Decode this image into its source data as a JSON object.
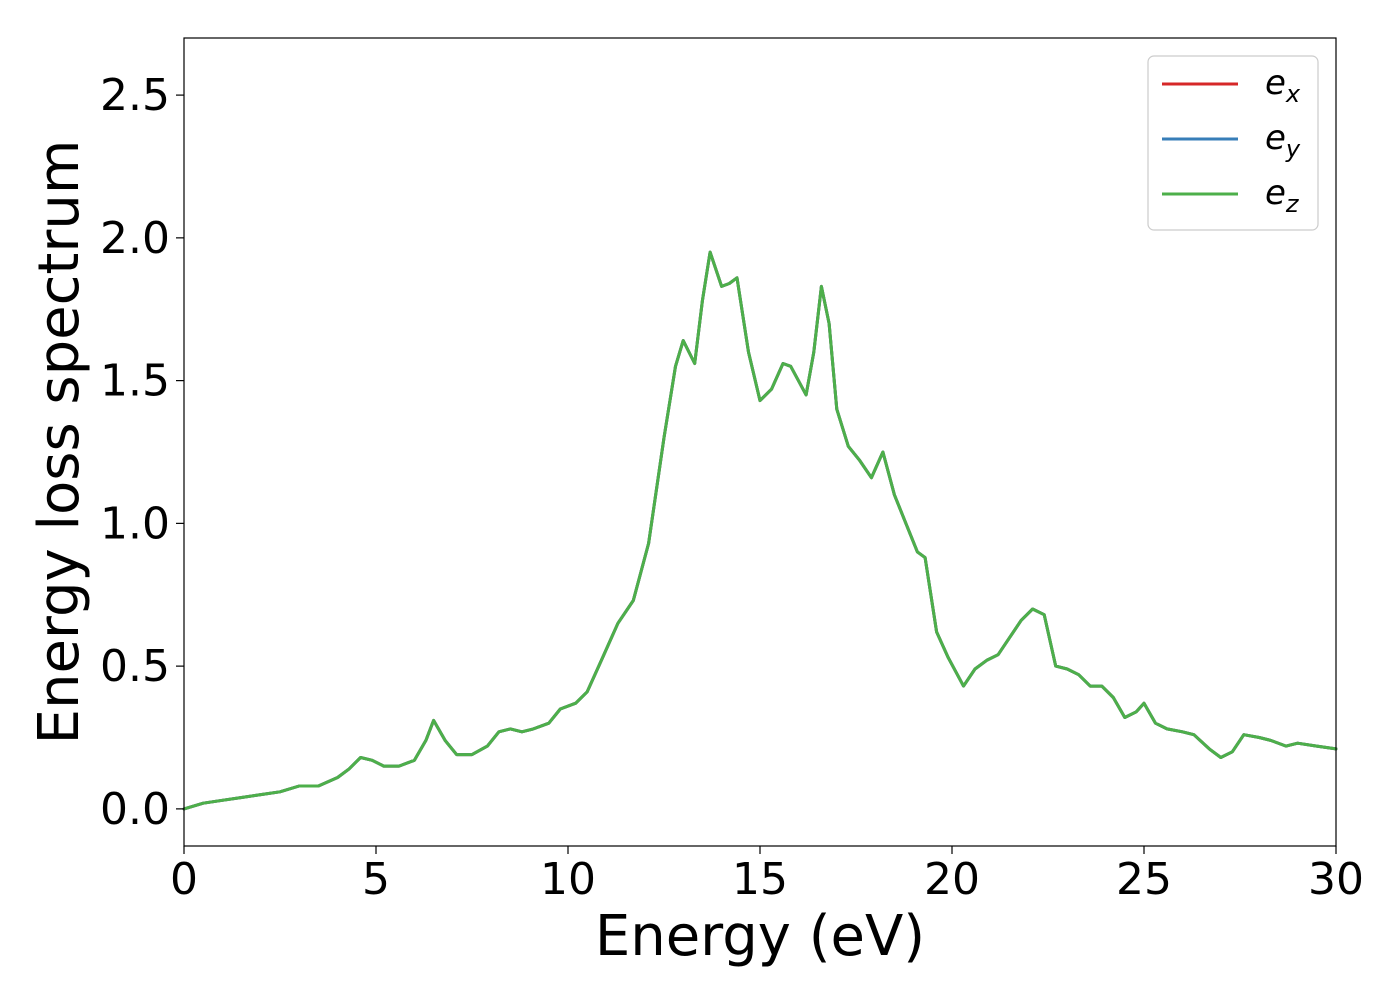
{
  "chart_data": {
    "type": "line",
    "title": "",
    "xlabel": "Energy (eV)",
    "ylabel": "Energy loss spectrum",
    "xlim": [
      0,
      30
    ],
    "ylim": [
      -0.13,
      2.7
    ],
    "xticks": [
      0,
      5,
      10,
      15,
      20,
      25,
      30
    ],
    "xtick_labels": [
      "0",
      "5",
      "10",
      "15",
      "20",
      "25",
      "30"
    ],
    "yticks": [
      0.0,
      0.5,
      1.0,
      1.5,
      2.0,
      2.5
    ],
    "ytick_labels": [
      "0.0",
      "0.5",
      "1.0",
      "1.5",
      "2.0",
      "2.5"
    ],
    "grid": false,
    "legend_position": "top-right",
    "x": [
      0,
      0.5,
      1,
      1.5,
      2,
      2.5,
      3,
      3.5,
      4,
      4.3,
      4.6,
      4.9,
      5.2,
      5.6,
      6.0,
      6.3,
      6.5,
      6.8,
      7.1,
      7.5,
      7.9,
      8.2,
      8.5,
      8.8,
      9.1,
      9.5,
      9.8,
      10.2,
      10.5,
      10.9,
      11.3,
      11.7,
      12.1,
      12.5,
      12.8,
      13.0,
      13.3,
      13.5,
      13.7,
      14.0,
      14.2,
      14.4,
      14.7,
      15.0,
      15.3,
      15.6,
      15.8,
      16.0,
      16.2,
      16.4,
      16.6,
      16.8,
      17.0,
      17.3,
      17.6,
      17.9,
      18.2,
      18.5,
      18.8,
      19.1,
      19.3,
      19.6,
      19.9,
      20.3,
      20.6,
      20.9,
      21.2,
      21.5,
      21.8,
      22.1,
      22.4,
      22.7,
      23.0,
      23.3,
      23.6,
      23.9,
      24.2,
      24.5,
      24.8,
      25.0,
      25.3,
      25.6,
      26.0,
      26.3,
      26.7,
      27.0,
      27.3,
      27.6,
      28.0,
      28.3,
      28.7,
      29.0,
      29.5,
      30.0
    ],
    "series": [
      {
        "name": "e_x",
        "color": "#d62728",
        "values": [
          0.0,
          0.02,
          0.03,
          0.04,
          0.05,
          0.06,
          0.08,
          0.08,
          0.11,
          0.14,
          0.18,
          0.17,
          0.15,
          0.15,
          0.17,
          0.24,
          0.31,
          0.24,
          0.19,
          0.19,
          0.22,
          0.27,
          0.28,
          0.27,
          0.28,
          0.3,
          0.35,
          0.37,
          0.41,
          0.53,
          0.65,
          0.73,
          0.93,
          1.3,
          1.55,
          1.64,
          1.56,
          1.78,
          1.95,
          1.83,
          1.84,
          1.86,
          1.6,
          1.43,
          1.47,
          1.56,
          1.55,
          1.5,
          1.45,
          1.6,
          1.83,
          1.7,
          1.4,
          1.27,
          1.22,
          1.16,
          1.25,
          1.1,
          1.0,
          0.9,
          0.88,
          0.62,
          0.53,
          0.43,
          0.49,
          0.52,
          0.54,
          0.6,
          0.66,
          0.7,
          0.68,
          0.5,
          0.49,
          0.47,
          0.43,
          0.43,
          0.39,
          0.32,
          0.34,
          0.37,
          0.3,
          0.28,
          0.27,
          0.26,
          0.21,
          0.18,
          0.2,
          0.26,
          0.25,
          0.24,
          0.22,
          0.23,
          0.22,
          0.21
        ]
      },
      {
        "name": "e_y",
        "color": "#377eb8",
        "values": [
          0.0,
          0.02,
          0.03,
          0.04,
          0.05,
          0.06,
          0.08,
          0.08,
          0.11,
          0.14,
          0.18,
          0.17,
          0.15,
          0.15,
          0.17,
          0.24,
          0.31,
          0.24,
          0.19,
          0.19,
          0.22,
          0.27,
          0.28,
          0.27,
          0.28,
          0.3,
          0.35,
          0.37,
          0.41,
          0.53,
          0.65,
          0.73,
          0.93,
          1.3,
          1.55,
          1.64,
          1.56,
          1.78,
          1.95,
          1.83,
          1.84,
          1.86,
          1.6,
          1.43,
          1.47,
          1.56,
          1.55,
          1.5,
          1.45,
          1.6,
          1.83,
          1.7,
          1.4,
          1.27,
          1.22,
          1.16,
          1.25,
          1.1,
          1.0,
          0.9,
          0.88,
          0.62,
          0.53,
          0.43,
          0.49,
          0.52,
          0.54,
          0.6,
          0.66,
          0.7,
          0.68,
          0.5,
          0.49,
          0.47,
          0.43,
          0.43,
          0.39,
          0.32,
          0.34,
          0.37,
          0.3,
          0.28,
          0.27,
          0.26,
          0.21,
          0.18,
          0.2,
          0.26,
          0.25,
          0.24,
          0.22,
          0.23,
          0.22,
          0.21
        ]
      },
      {
        "name": "e_z",
        "color": "#4daf4a",
        "values": [
          0.0,
          0.02,
          0.03,
          0.04,
          0.05,
          0.06,
          0.08,
          0.08,
          0.11,
          0.14,
          0.18,
          0.17,
          0.15,
          0.15,
          0.17,
          0.24,
          0.31,
          0.24,
          0.19,
          0.19,
          0.22,
          0.27,
          0.28,
          0.27,
          0.28,
          0.3,
          0.35,
          0.37,
          0.41,
          0.53,
          0.65,
          0.73,
          0.93,
          1.3,
          1.55,
          1.64,
          1.56,
          1.78,
          1.95,
          1.83,
          1.84,
          1.86,
          1.6,
          1.43,
          1.47,
          1.56,
          1.55,
          1.5,
          1.45,
          1.6,
          1.83,
          1.7,
          1.4,
          1.27,
          1.22,
          1.16,
          1.25,
          1.1,
          1.0,
          0.9,
          0.88,
          0.62,
          0.53,
          0.43,
          0.49,
          0.52,
          0.54,
          0.6,
          0.66,
          0.7,
          0.68,
          0.5,
          0.49,
          0.47,
          0.43,
          0.43,
          0.39,
          0.32,
          0.34,
          0.37,
          0.3,
          0.28,
          0.27,
          0.26,
          0.21,
          0.18,
          0.2,
          0.26,
          0.25,
          0.24,
          0.22,
          0.23,
          0.22,
          0.21
        ]
      }
    ],
    "legend": [
      {
        "base": "e",
        "sub": "x",
        "color": "#d62728"
      },
      {
        "base": "e",
        "sub": "y",
        "color": "#377eb8"
      },
      {
        "base": "e",
        "sub": "z",
        "color": "#4daf4a"
      }
    ]
  }
}
